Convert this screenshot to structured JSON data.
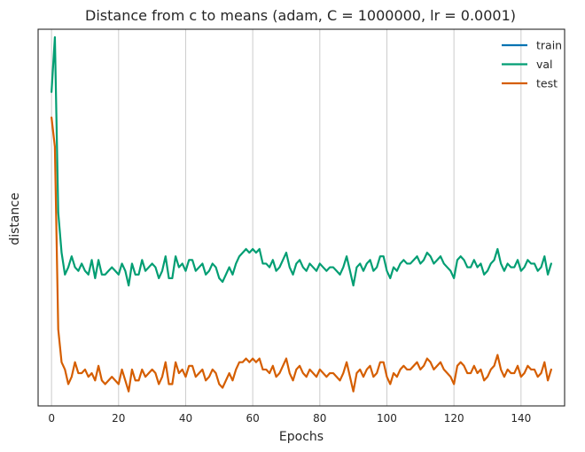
{
  "chart_data": {
    "type": "line",
    "title": "Distance from c to means (adam, C = 1000000, lr = 0.0001)",
    "xlabel": "Epochs",
    "ylabel": "distance",
    "xlim": [
      -4,
      153
    ],
    "ylim": [
      0,
      1
    ],
    "x_ticks": [
      0,
      20,
      40,
      60,
      80,
      100,
      120,
      140
    ],
    "y_tick_labels": "hidden",
    "grid": "vertical",
    "legend_position": "top-right",
    "colors": {
      "train": "#0173b2",
      "val": "#029e73",
      "test": "#d55e00"
    },
    "series": [
      {
        "name": "train",
        "values": []
      },
      {
        "name": "val",
        "values": [
          0.85,
          1.0,
          0.52,
          0.41,
          0.35,
          0.37,
          0.4,
          0.37,
          0.36,
          0.38,
          0.36,
          0.35,
          0.39,
          0.34,
          0.39,
          0.35,
          0.35,
          0.36,
          0.37,
          0.36,
          0.35,
          0.38,
          0.36,
          0.32,
          0.38,
          0.35,
          0.35,
          0.39,
          0.36,
          0.37,
          0.38,
          0.37,
          0.34,
          0.36,
          0.4,
          0.34,
          0.34,
          0.4,
          0.37,
          0.38,
          0.36,
          0.39,
          0.39,
          0.36,
          0.37,
          0.38,
          0.35,
          0.36,
          0.38,
          0.37,
          0.34,
          0.33,
          0.35,
          0.37,
          0.35,
          0.38,
          0.4,
          0.41,
          0.42,
          0.41,
          0.42,
          0.41,
          0.42,
          0.38,
          0.38,
          0.37,
          0.39,
          0.36,
          0.37,
          0.39,
          0.41,
          0.37,
          0.35,
          0.38,
          0.39,
          0.37,
          0.36,
          0.38,
          0.37,
          0.36,
          0.38,
          0.37,
          0.36,
          0.37,
          0.37,
          0.36,
          0.35,
          0.37,
          0.4,
          0.36,
          0.32,
          0.37,
          0.38,
          0.36,
          0.38,
          0.39,
          0.36,
          0.37,
          0.4,
          0.4,
          0.36,
          0.34,
          0.37,
          0.36,
          0.38,
          0.39,
          0.38,
          0.38,
          0.39,
          0.4,
          0.38,
          0.39,
          0.41,
          0.4,
          0.38,
          0.39,
          0.4,
          0.38,
          0.37,
          0.36,
          0.34,
          0.39,
          0.4,
          0.39,
          0.37,
          0.37,
          0.39,
          0.37,
          0.38,
          0.35,
          0.36,
          0.38,
          0.39,
          0.42,
          0.38,
          0.36,
          0.38,
          0.37,
          0.37,
          0.39,
          0.36,
          0.37,
          0.39,
          0.38,
          0.38,
          0.36,
          0.37,
          0.4,
          0.35,
          0.38
        ]
      },
      {
        "name": "test",
        "values": [
          0.78,
          0.7,
          0.2,
          0.11,
          0.09,
          0.05,
          0.07,
          0.11,
          0.08,
          0.08,
          0.09,
          0.07,
          0.08,
          0.06,
          0.1,
          0.06,
          0.05,
          0.06,
          0.07,
          0.06,
          0.05,
          0.09,
          0.06,
          0.03,
          0.09,
          0.06,
          0.06,
          0.09,
          0.07,
          0.08,
          0.09,
          0.08,
          0.05,
          0.07,
          0.11,
          0.05,
          0.05,
          0.11,
          0.08,
          0.09,
          0.07,
          0.1,
          0.1,
          0.07,
          0.08,
          0.09,
          0.06,
          0.07,
          0.09,
          0.08,
          0.05,
          0.04,
          0.06,
          0.08,
          0.06,
          0.09,
          0.11,
          0.11,
          0.12,
          0.11,
          0.12,
          0.11,
          0.12,
          0.09,
          0.09,
          0.08,
          0.1,
          0.07,
          0.08,
          0.1,
          0.12,
          0.08,
          0.06,
          0.09,
          0.1,
          0.08,
          0.07,
          0.09,
          0.08,
          0.07,
          0.09,
          0.08,
          0.07,
          0.08,
          0.08,
          0.07,
          0.06,
          0.08,
          0.11,
          0.07,
          0.03,
          0.08,
          0.09,
          0.07,
          0.09,
          0.1,
          0.07,
          0.08,
          0.11,
          0.11,
          0.07,
          0.05,
          0.08,
          0.07,
          0.09,
          0.1,
          0.09,
          0.09,
          0.1,
          0.11,
          0.09,
          0.1,
          0.12,
          0.11,
          0.09,
          0.1,
          0.11,
          0.09,
          0.08,
          0.07,
          0.05,
          0.1,
          0.11,
          0.1,
          0.08,
          0.08,
          0.1,
          0.08,
          0.09,
          0.06,
          0.07,
          0.09,
          0.1,
          0.13,
          0.09,
          0.07,
          0.09,
          0.08,
          0.08,
          0.1,
          0.07,
          0.08,
          0.1,
          0.09,
          0.09,
          0.07,
          0.08,
          0.11,
          0.06,
          0.09
        ]
      }
    ]
  }
}
